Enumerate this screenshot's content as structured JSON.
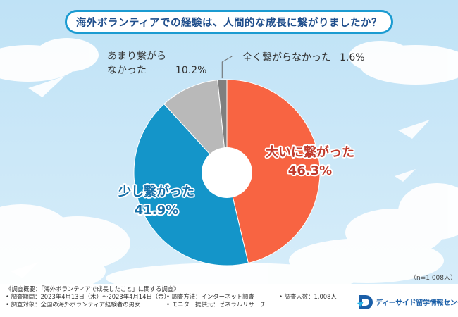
{
  "title": "海外ボランティアでの経験は、人間的な成長に繋がりましたか？",
  "sample_note": "（n=1,008人）",
  "chart_data": {
    "type": "pie",
    "title": "海外ボランティアでの経験は、人間的な成長に繋がりましたか？",
    "slices": [
      {
        "label": "大いに繋がった",
        "value": 46.3,
        "value_text": "46.3%",
        "color": "#f86442"
      },
      {
        "label": "少し繋がった",
        "value": 41.9,
        "value_text": "41.9%",
        "color": "#1495c9"
      },
      {
        "label": "あまり繋がらなかった",
        "label_lines": [
          "あまり繋がら",
          "なかった"
        ],
        "value": 10.2,
        "value_text": "10.2%",
        "color": "#b9b9b9"
      },
      {
        "label": "全く繋がらなかった",
        "value": 1.6,
        "value_text": "1.6%",
        "color": "#7f7f7f"
      }
    ]
  },
  "footer": {
    "overview": "《調査概要：「海外ボランティアで成長したこと」に関する調査》",
    "period": "• 調査期間：2023年4月13日（木）～2023年4月14日（金）",
    "method": "• 調査方法：インターネット調査",
    "count": "• 調査人数：1,008人",
    "target": "• 調査対象：全国の海外ボランティア経験者の男女",
    "provider": "• モニター提供元：ゼネラルリサーチ",
    "logo_text": "ディーサイド留学情報センター"
  }
}
